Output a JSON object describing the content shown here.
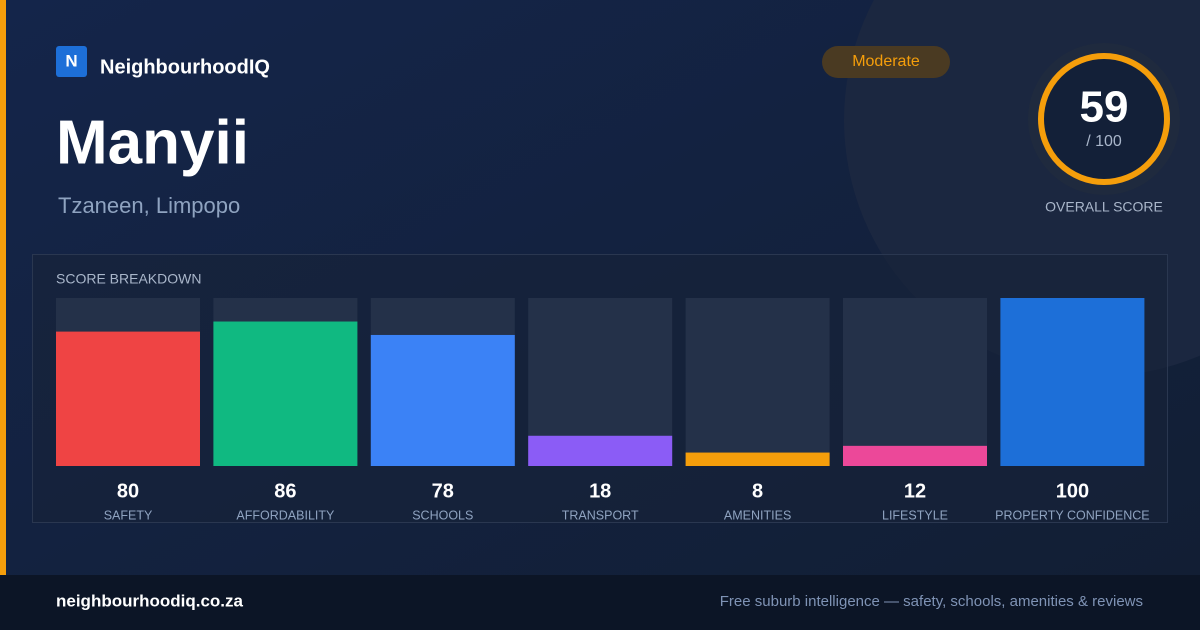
{
  "brand": {
    "logo": "N",
    "name": "NeighbourhoodIQ"
  },
  "title": "Manyii",
  "subtitle": "Tzaneen, Limpopo",
  "badge": "Moderate",
  "score": {
    "value": 59,
    "label": "/ 100",
    "caption": "OVERALL SCORE"
  },
  "breakdown": {
    "type": "bar",
    "title": "SCORE BREAKDOWN",
    "categories": [
      "SAFETY",
      "AFFORDABILITY",
      "SCHOOLS",
      "TRANSPORT",
      "AMENITIES",
      "LIFESTYLE",
      "PROPERTY CONFIDENCE"
    ],
    "values": [
      80,
      86,
      78,
      18,
      8,
      12,
      100
    ],
    "colors": [
      "#ef4444",
      "#10b981",
      "#3b82f6",
      "#8b5cf6",
      "#f59e0b",
      "#ec4899",
      "#1d6fd8"
    ],
    "ylim": [
      0,
      100
    ]
  },
  "footer": {
    "url": "neighbourhoodiq.co.za",
    "tagline": "Free suburb intelligence — safety, schools, amenities & reviews"
  }
}
